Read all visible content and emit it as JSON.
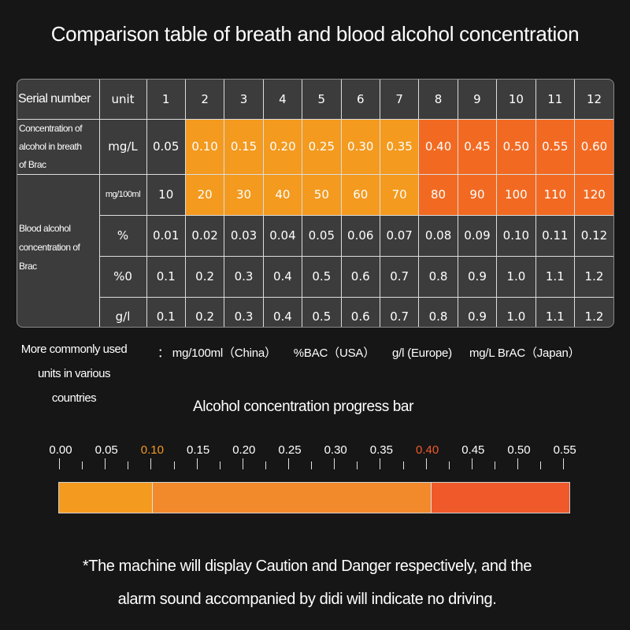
{
  "title": "Comparison table of breath and blood alcohol concentration",
  "table": {
    "header": {
      "label": "Serial number",
      "unit": "unit",
      "numbers": [
        "1",
        "2",
        "3",
        "4",
        "5",
        "6",
        "7",
        "8",
        "9",
        "10",
        "11",
        "12"
      ]
    },
    "breath": {
      "label_lines": [
        "Concentration of",
        "alcohol in breath",
        "of Brac"
      ],
      "unit": "mg/L",
      "values": [
        "0.05",
        "0.10",
        "0.15",
        "0.20",
        "0.25",
        "0.30",
        "0.35",
        "0.40",
        "0.45",
        "0.50",
        "0.55",
        "0.60"
      ]
    },
    "blood": {
      "label_lines": [
        "Blood alcohol",
        "concentration of",
        "Brac"
      ],
      "rows": [
        {
          "unit": "mg/100ml",
          "values": [
            "10",
            "20",
            "30",
            "40",
            "50",
            "60",
            "70",
            "80",
            "90",
            "100",
            "110",
            "120"
          ]
        },
        {
          "unit": "%",
          "values": [
            "0.01",
            "0.02",
            "0.03",
            "0.04",
            "0.05",
            "0.06",
            "0.07",
            "0.08",
            "0.09",
            "0.10",
            "0.11",
            "0.12"
          ]
        },
        {
          "unit": "%0",
          "values": [
            "0.1",
            "0.2",
            "0.3",
            "0.4",
            "0.5",
            "0.6",
            "0.7",
            "0.8",
            "0.9",
            "1.0",
            "1.1",
            "1.2"
          ]
        },
        {
          "unit": "g/l",
          "values": [
            "0.1",
            "0.2",
            "0.3",
            "0.4",
            "0.5",
            "0.6",
            "0.7",
            "0.8",
            "0.9",
            "1.0",
            "1.1",
            "1.2"
          ]
        }
      ]
    },
    "highlight": {
      "caution_columns": [
        2,
        3,
        4,
        5,
        6,
        7
      ],
      "danger_columns": [
        8,
        9,
        10,
        11,
        12
      ]
    }
  },
  "units_note": {
    "label_lines": [
      "More commonly used",
      "units in various",
      "countries"
    ],
    "items": [
      "： mg/100ml（China）",
      "%BAC（USA）",
      "g/l (Europe)",
      "mg/L BrAC（Japan）"
    ]
  },
  "progress": {
    "title": "Alcohol concentration progress bar",
    "scale_labels": [
      "0.00",
      "0.05",
      "0.10",
      "0.15",
      "0.20",
      "0.25",
      "0.30",
      "0.35",
      "0.40",
      "0.45",
      "0.50",
      "0.55"
    ],
    "scale_min": 0.0,
    "scale_max": 0.55,
    "caution_threshold": 0.1,
    "danger_threshold": 0.4
  },
  "footnote_lines": [
    "*The machine will display Caution and Danger respectively, and the",
    "alarm sound accompanied by didi will indicate no driving."
  ],
  "colors": {
    "background": "#161616",
    "table_bg": "#3c3c3c",
    "caution": "#f39a1f",
    "danger": "#f26a22",
    "bar_low": "#f39a1f",
    "bar_caution": "#f28a2c",
    "bar_danger": "#f0592a"
  }
}
